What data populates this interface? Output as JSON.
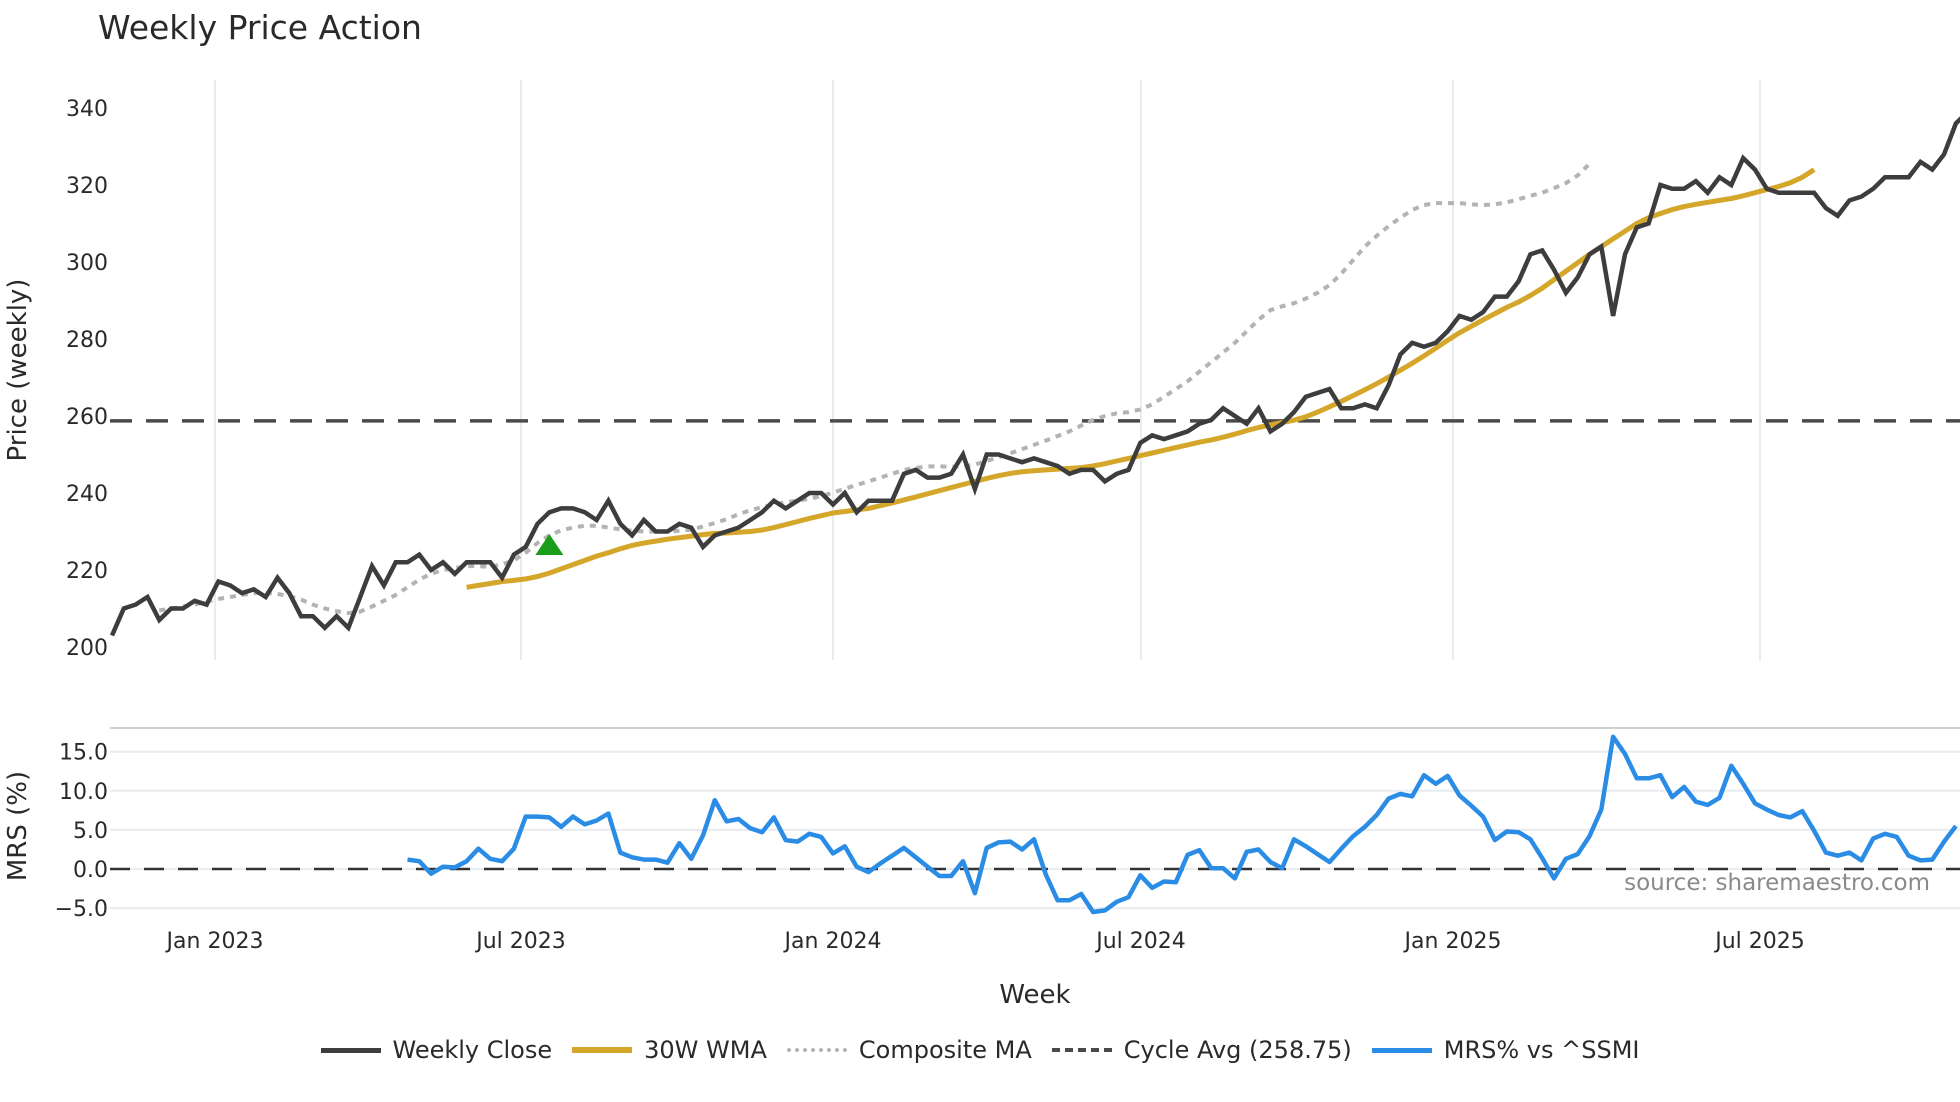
{
  "title": "Weekly Price Action",
  "colors": {
    "weekly_close": "#3d3d3d",
    "wma": "#d4a62a",
    "composite_ma": "#b3b3b3",
    "cycle_avg": "#4a4a4a",
    "mrs": "#2b8ce6",
    "signal_marker": "#1a9e1a",
    "grid": "#e8ecf0"
  },
  "watermark": "source: sharemaestro.com",
  "legend": [
    {
      "label": "Weekly Close",
      "style": "solid",
      "color": "#3d3d3d"
    },
    {
      "label": "30W WMA",
      "style": "solid",
      "color": "#d4a62a"
    },
    {
      "label": "Composite MA",
      "style": "dotted",
      "color": "#b3b3b3"
    },
    {
      "label": "Cycle Avg (258.75)",
      "style": "dashed",
      "color": "#4a4a4a"
    },
    {
      "label": "MRS% vs ^SSMI",
      "style": "solid",
      "color": "#2b8ce6"
    }
  ],
  "chart_data": [
    {
      "type": "line",
      "title": "Weekly Price Action",
      "xlabel": "Week",
      "ylabel": "Price (weekly)",
      "ylim": [
        198,
        346
      ],
      "yticks": [
        200,
        220,
        240,
        260,
        280,
        300,
        320,
        340
      ],
      "xticks": [
        "Jan 2023",
        "Jul 2023",
        "Jan 2024",
        "Jul 2024",
        "Jan 2025",
        "Jul 2025"
      ],
      "x_start": "2022-10-24",
      "x_step": "1 week",
      "grid": true,
      "series": [
        {
          "name": "Weekly Close",
          "values": [
            203,
            210,
            211,
            213,
            207,
            210,
            210,
            212,
            211,
            217,
            216,
            214,
            215,
            213,
            218,
            214,
            208,
            208,
            205,
            208,
            205,
            213,
            221,
            216,
            222,
            222,
            224,
            220,
            222,
            219,
            222,
            222,
            222,
            218,
            224,
            226,
            232,
            235,
            236,
            236,
            235,
            233,
            238,
            232,
            229,
            233,
            230,
            230,
            232,
            231,
            226,
            229,
            230,
            231,
            233,
            235,
            238,
            236,
            238,
            240,
            240,
            237,
            240,
            235,
            238,
            238,
            238,
            245,
            246,
            244,
            244,
            245,
            250,
            241,
            250,
            250,
            249,
            248,
            249,
            248,
            247,
            245,
            246,
            246,
            243,
            245,
            246,
            253,
            255,
            254,
            255,
            256,
            258,
            259,
            262,
            260,
            258,
            262,
            256,
            258,
            261,
            265,
            266,
            267,
            262,
            262,
            263,
            262,
            268,
            276,
            279,
            278,
            279,
            282,
            286,
            285,
            287,
            291,
            291,
            295,
            302,
            303,
            298,
            292,
            296,
            302,
            304,
            286,
            302,
            309,
            310,
            320,
            319,
            319,
            321,
            318,
            322,
            320,
            327,
            324,
            319,
            318,
            318,
            318,
            318,
            314,
            312,
            316,
            317,
            319,
            322,
            322,
            322,
            326,
            324,
            328,
            336,
            339
          ]
        },
        {
          "name": "30W WMA",
          "start_index": 30,
          "values": [
            215.5,
            216,
            216.5,
            217,
            217.3,
            217.7,
            218.3,
            219.2,
            220.3,
            221.4,
            222.5,
            223.6,
            224.5,
            225.5,
            226.4,
            227,
            227.5,
            228,
            228.4,
            228.8,
            229.2,
            229.5,
            229.6,
            229.8,
            230,
            230.4,
            231,
            231.8,
            232.6,
            233.4,
            234.1,
            234.8,
            235.2,
            235.6,
            236,
            236.7,
            237.4,
            238.2,
            239,
            239.8,
            240.6,
            241.4,
            242.2,
            243,
            243.8,
            244.5,
            245.1,
            245.5,
            245.8,
            246,
            246.2,
            246.4,
            246.6,
            247,
            247.6,
            248.3,
            249,
            249.7,
            250.4,
            251.1,
            251.8,
            252.5,
            253.2,
            253.8,
            254.5,
            255.3,
            256.2,
            257,
            257.7,
            258.3,
            258.9,
            259.8,
            261,
            262.4,
            263.8,
            265.3,
            266.8,
            268.4,
            270.1,
            271.9,
            273.7,
            275.6,
            277.6,
            279.7,
            281.6,
            283.3,
            285,
            286.6,
            288.2,
            289.6,
            291.3,
            293.2,
            295.4,
            297.6,
            299.8,
            302,
            304,
            306,
            308,
            310,
            311.5,
            312.6,
            313.6,
            314.4,
            315,
            315.5,
            316,
            316.5,
            317.2,
            318,
            318.8,
            319.6,
            320.6,
            322,
            324
          ]
        },
        {
          "name": "Composite MA",
          "start_index": 4,
          "values": [
            209.5,
            210,
            210.5,
            211,
            211.8,
            212.5,
            213,
            213.5,
            214,
            214,
            213.8,
            213.2,
            212.3,
            211,
            210,
            209.3,
            208.8,
            209.2,
            210.5,
            212,
            213.5,
            215.5,
            217.5,
            219,
            220,
            220.5,
            221,
            221,
            220.8,
            221.5,
            222.5,
            224.5,
            227,
            229,
            230.3,
            231,
            231.5,
            231.5,
            231,
            230.6,
            230.2,
            230,
            230,
            230,
            230.2,
            230.5,
            231.3,
            232.2,
            233.2,
            234.5,
            235.5,
            236.3,
            237,
            237.6,
            238,
            238.5,
            239.2,
            240.1,
            241.1,
            242.1,
            243,
            244,
            245,
            246,
            246.5,
            246.9,
            246.9,
            246.8,
            246.9,
            247.4,
            248.3,
            249.3,
            250.3,
            251.4,
            252.5,
            253.6,
            254.8,
            256,
            257.5,
            259,
            260,
            260.7,
            261,
            261.7,
            263,
            265,
            267,
            269,
            271.5,
            274,
            276.5,
            279,
            282,
            285,
            287.5,
            288.5,
            289.3,
            290.5,
            292,
            294,
            297,
            300.5,
            304,
            306.8,
            309.3,
            311.5,
            313.5,
            314.8,
            315.3,
            315.3,
            315.3,
            315,
            314.8,
            315,
            315.5,
            316.3,
            317.2,
            318,
            319.2,
            320.5,
            322.5,
            325.5
          ]
        },
        {
          "name": "Cycle Avg (258.75)",
          "type": "hline",
          "value": 258.75,
          "style": "dashed"
        }
      ],
      "annotations": [
        {
          "type": "marker",
          "shape": "triangle-up",
          "color": "#1a9e1a",
          "index": 37,
          "value": 226.5
        }
      ]
    },
    {
      "type": "line",
      "xlabel": "Week",
      "ylabel": "MRS (%)",
      "ylim": [
        -6.5,
        18.8
      ],
      "yticks": [
        "-5.0",
        "0.0",
        "5.0",
        "10.0",
        "15.0"
      ],
      "grid": true,
      "series": [
        {
          "name": "MRS% vs ^SSMI",
          "start_index": 25,
          "values": [
            1.2,
            1.0,
            -0.6,
            0.3,
            0.2,
            1.0,
            2.6,
            1.3,
            1.0,
            2.6,
            6.7,
            6.7,
            6.6,
            5.4,
            6.7,
            5.7,
            6.2,
            7.1,
            2.1,
            1.5,
            1.2,
            1.2,
            0.8,
            3.3,
            1.3,
            4.3,
            8.8,
            6.1,
            6.4,
            5.2,
            4.7,
            6.6,
            3.7,
            3.5,
            4.5,
            4.1,
            2.0,
            2.9,
            0.3,
            -0.4,
            0.7,
            1.7,
            2.7,
            1.5,
            0.3,
            -0.9,
            -0.9,
            1.0,
            -3.1,
            2.7,
            3.4,
            3.5,
            2.5,
            3.8,
            -0.7,
            -4.0,
            -4.0,
            -3.2,
            -5.5,
            -5.3,
            -4.2,
            -3.6,
            -0.8,
            -2.4,
            -1.6,
            -1.7,
            1.8,
            2.4,
            0.1,
            0.1,
            -1.2,
            2.2,
            2.5,
            0.9,
            0.1,
            3.8,
            2.9,
            1.9,
            0.9,
            2.6,
            4.2,
            5.4,
            6.9,
            9.0,
            9.6,
            9.3,
            12.0,
            10.9,
            11.9,
            9.4,
            8.1,
            6.7,
            3.7,
            4.8,
            4.7,
            3.8,
            1.4,
            -1.2,
            1.3,
            1.9,
            4.2,
            7.6,
            16.9,
            14.7,
            11.6,
            11.6,
            12.0,
            9.2,
            10.5,
            8.6,
            8.2,
            9.1,
            13.2,
            10.9,
            8.4,
            7.6,
            6.9,
            6.6,
            7.4,
            4.9,
            2.1,
            1.7,
            2.1,
            1.1,
            3.9,
            4.5,
            4.1,
            1.7,
            1.1,
            1.2,
            3.5,
            5.5
          ]
        },
        {
          "name": "zero line",
          "type": "hline",
          "value": 0,
          "style": "dashed"
        }
      ]
    }
  ]
}
